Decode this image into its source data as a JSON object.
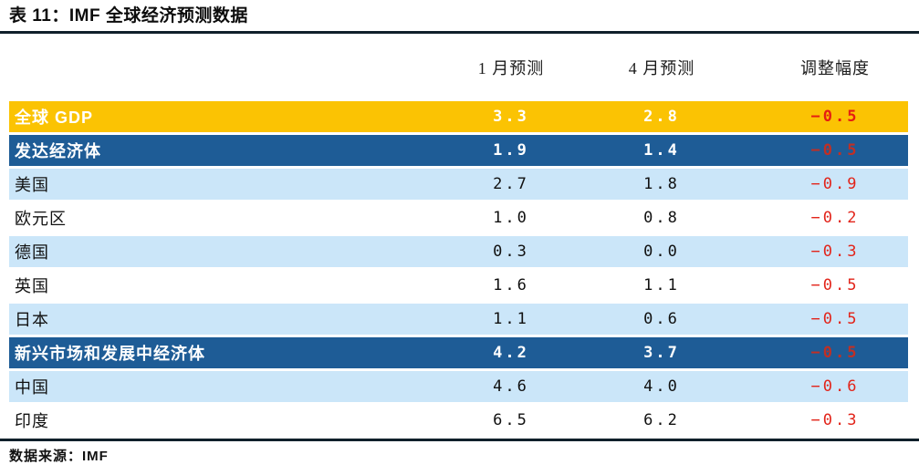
{
  "title": "表 11：IMF 全球经济预测数据",
  "columns": [
    "1 月预测",
    "4 月预测",
    "调整幅度"
  ],
  "rows": [
    {
      "label": "全球 GDP",
      "jan": "3.3",
      "apr": "2.8",
      "adj": "−0.5",
      "style": "gold"
    },
    {
      "label": "发达经济体",
      "jan": "1.9",
      "apr": "1.4",
      "adj": "−0.5",
      "style": "darkblue"
    },
    {
      "label": "美国",
      "jan": "2.7",
      "apr": "1.8",
      "adj": "−0.9",
      "style": "lightblue"
    },
    {
      "label": "欧元区",
      "jan": "1.0",
      "apr": "0.8",
      "adj": "−0.2",
      "style": "white"
    },
    {
      "label": "德国",
      "jan": "0.3",
      "apr": "0.0",
      "adj": "−0.3",
      "style": "lightblue"
    },
    {
      "label": "英国",
      "jan": "1.6",
      "apr": "1.1",
      "adj": "−0.5",
      "style": "white"
    },
    {
      "label": "日本",
      "jan": "1.1",
      "apr": "0.6",
      "adj": "−0.5",
      "style": "lightblue"
    },
    {
      "label": "新兴市场和发展中经济体",
      "jan": "4.2",
      "apr": "3.7",
      "adj": "−0.5",
      "style": "darkblue"
    },
    {
      "label": "中国",
      "jan": "4.6",
      "apr": "4.0",
      "adj": "−0.6",
      "style": "lightblue"
    },
    {
      "label": "印度",
      "jan": "6.5",
      "apr": "6.2",
      "adj": "−0.3",
      "style": "white"
    }
  ],
  "source": "数据来源：IMF",
  "colors": {
    "gold_row": "#fbc303",
    "dark_blue_row": "#1e5c96",
    "light_blue_row": "#cbe6f9",
    "negative_red": "#e2241a",
    "negative_red_on_dark": "#c12f24",
    "divider_black": "#10202b"
  },
  "chart_data": {
    "type": "table",
    "title": "表 11：IMF 全球经济预测数据",
    "columns": [
      "",
      "1 月预测",
      "4 月预测",
      "调整幅度"
    ],
    "rows": [
      [
        "全球 GDP",
        3.3,
        2.8,
        -0.5
      ],
      [
        "发达经济体",
        1.9,
        1.4,
        -0.5
      ],
      [
        "美国",
        2.7,
        1.8,
        -0.9
      ],
      [
        "欧元区",
        1.0,
        0.8,
        -0.2
      ],
      [
        "德国",
        0.3,
        0.0,
        -0.3
      ],
      [
        "英国",
        1.6,
        1.1,
        -0.5
      ],
      [
        "日本",
        1.1,
        0.6,
        -0.5
      ],
      [
        "新兴市场和发展中经济体",
        4.2,
        3.7,
        -0.5
      ],
      [
        "中国",
        4.6,
        4.0,
        -0.6
      ],
      [
        "印度",
        6.5,
        6.2,
        -0.3
      ]
    ],
    "source": "数据来源：IMF",
    "layout_hints": {
      "highlight_rows": {
        "gold": [
          "全球 GDP"
        ],
        "dark_blue": [
          "发达经济体",
          "新兴市场和发展中经济体"
        ],
        "light_blue_alternating": true
      },
      "negative_values_in_red": true
    }
  }
}
